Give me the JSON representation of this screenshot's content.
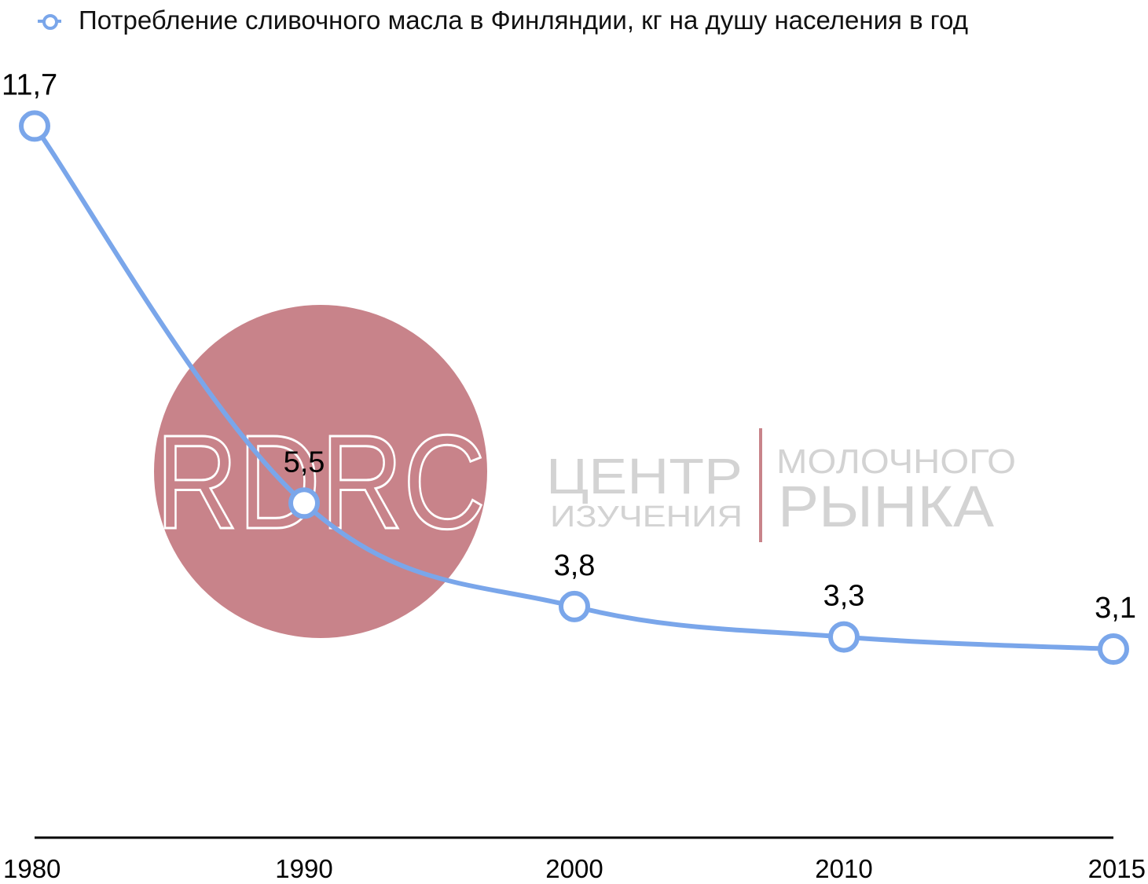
{
  "chart_data": {
    "type": "line",
    "categories": [
      "1980",
      "1990",
      "2000",
      "2010",
      "2015"
    ],
    "series": [
      {
        "name": "Потребление сливочного масла в Финляндии, кг на душу населения в год",
        "values": [
          11.7,
          5.5,
          3.8,
          3.3,
          3.1
        ]
      }
    ],
    "data_labels": [
      "11,7",
      "5,5",
      "3,8",
      "3,3",
      "3,1"
    ],
    "ylim": [
      0,
      13.8
    ],
    "grid": false,
    "legend_position": "top",
    "series_color": "#7aa6ea"
  },
  "watermark": {
    "logo_text": "RDRC",
    "line1_left": "ЦЕНТР",
    "line2_left": "ИЗУЧЕНИЯ",
    "line1_right": "МОЛОЧНОГО",
    "line2_right": "РЫНКА",
    "circle_color": "#c8838a",
    "text_color": "#d3d3d3"
  }
}
